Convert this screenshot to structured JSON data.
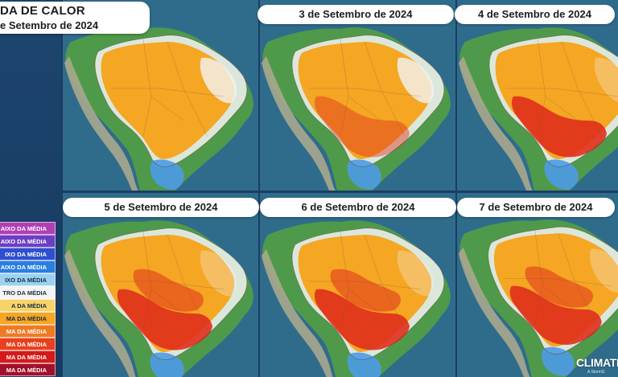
{
  "title": {
    "line1": "DA DE CALOR",
    "line2": "e Setembro de 2024"
  },
  "panels": [
    {
      "date": "",
      "level": 1
    },
    {
      "date": "3 de Setembro de 2024",
      "level": 2
    },
    {
      "date": "4 de Setembro de 2024",
      "level": 3
    },
    {
      "date": "5 de Setembro de 2024",
      "level": 4
    },
    {
      "date": "6 de Setembro de 2024",
      "level": 4
    },
    {
      "date": "7 de Setembro de 2024",
      "level": 4
    }
  ],
  "legend": [
    {
      "label": "AIXO DA MÉDIA",
      "color": "#b03fb5",
      "text_color": "#ffffff"
    },
    {
      "label": "AIXO DA MÉDIA",
      "color": "#6b3fc4",
      "text_color": "#ffffff"
    },
    {
      "label": "IXO DA MÉDIA",
      "color": "#2f4fd0",
      "text_color": "#ffffff"
    },
    {
      "label": "AIXO DA MÉDIA",
      "color": "#2a7ee0",
      "text_color": "#ffffff"
    },
    {
      "label": "IXO DA MÉDIA",
      "color": "#9ad2f2",
      "text_color": "#1b2e44"
    },
    {
      "label": "TRO DA MÉDIA",
      "color": "#f4f4f4",
      "text_color": "#1b2e44"
    },
    {
      "label": "A DA MÉDIA",
      "color": "#f7d36a",
      "text_color": "#1b2e44"
    },
    {
      "label": "MA DA MÉDIA",
      "color": "#f5a623",
      "text_color": "#1b2e44"
    },
    {
      "label": "MA DA MÉDIA",
      "color": "#f07a22",
      "text_color": "#ffffff"
    },
    {
      "label": "MA DA MÉDIA",
      "color": "#e8411e",
      "text_color": "#ffffff"
    },
    {
      "label": "MA DA MÉDIA",
      "color": "#d41a1a",
      "text_color": "#ffffff"
    },
    {
      "label": "MA DA MÉDIA",
      "color": "#a3102a",
      "text_color": "#ffffff"
    }
  ],
  "colors": {
    "ocean": "#2f6c8b",
    "land_green": "#4f9a4a",
    "andes": "#a9a88d",
    "anomaly_orange": "#f5a623",
    "anomaly_red": "#e0301c",
    "anomaly_blue": "#4d9be6",
    "neutral_white": "#f4f4f4"
  },
  "watermark": {
    "brand": "CLIMATE",
    "sub": "A StormG"
  }
}
